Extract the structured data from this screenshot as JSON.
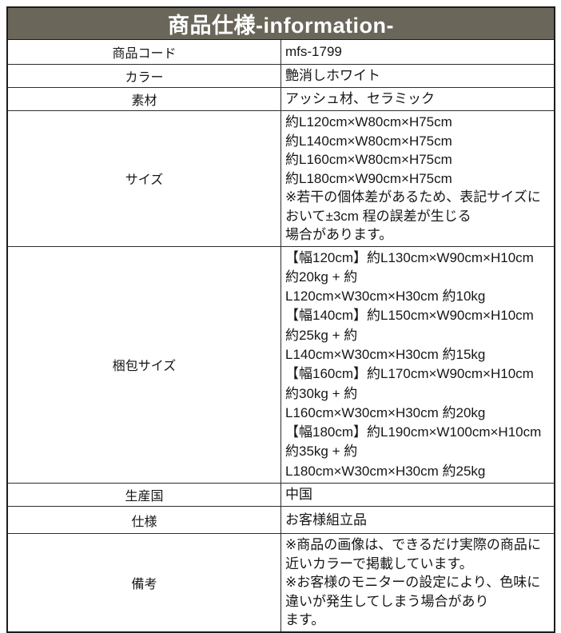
{
  "header": {
    "title": "商品仕様-information-"
  },
  "colors": {
    "header_bg": "#6a665a",
    "header_text": "#ffffff",
    "border": "#2d2d2d",
    "text": "#161616"
  },
  "table": {
    "rows": [
      {
        "label": "商品コード",
        "value": "mfs-1799"
      },
      {
        "label": "カラー",
        "value": "艶消しホワイト"
      },
      {
        "label": "素材",
        "value": "アッシュ材、セラミック"
      },
      {
        "label": "サイズ",
        "value": "約L120cm×W80cm×H75cm\n約L140cm×W80cm×H75cm\n約L160cm×W80cm×H75cm\n約L180cm×W90cm×H75cm\n※若干の個体差があるため、表記サイズにおいて±3cm 程の誤差が生じる\n場合があります。"
      },
      {
        "label": "梱包サイズ",
        "value": "【幅120cm】約L130cm×W90cm×H10cm 約20kg + 約\nL120cm×W30cm×H30cm 約10kg\n【幅140cm】約L150cm×W90cm×H10cm 約25kg + 約\nL140cm×W30cm×H30cm 約15kg\n【幅160cm】約L170cm×W90cm×H10cm 約30kg + 約\nL160cm×W30cm×H30cm 約20kg\n【幅180cm】約L190cm×W100cm×H10cm 約35kg + 約\nL180cm×W30cm×H30cm 約25kg"
      },
      {
        "label": "生産国",
        "value": "中国"
      },
      {
        "label": "仕様",
        "value": "お客様組立品"
      },
      {
        "label": "備考",
        "value": "※商品の画像は、できるだけ実際の商品に近いカラーで掲載しています。\n※お客様のモニターの設定により、色味に違いが発生してしまう場合があり\nます。"
      }
    ]
  }
}
